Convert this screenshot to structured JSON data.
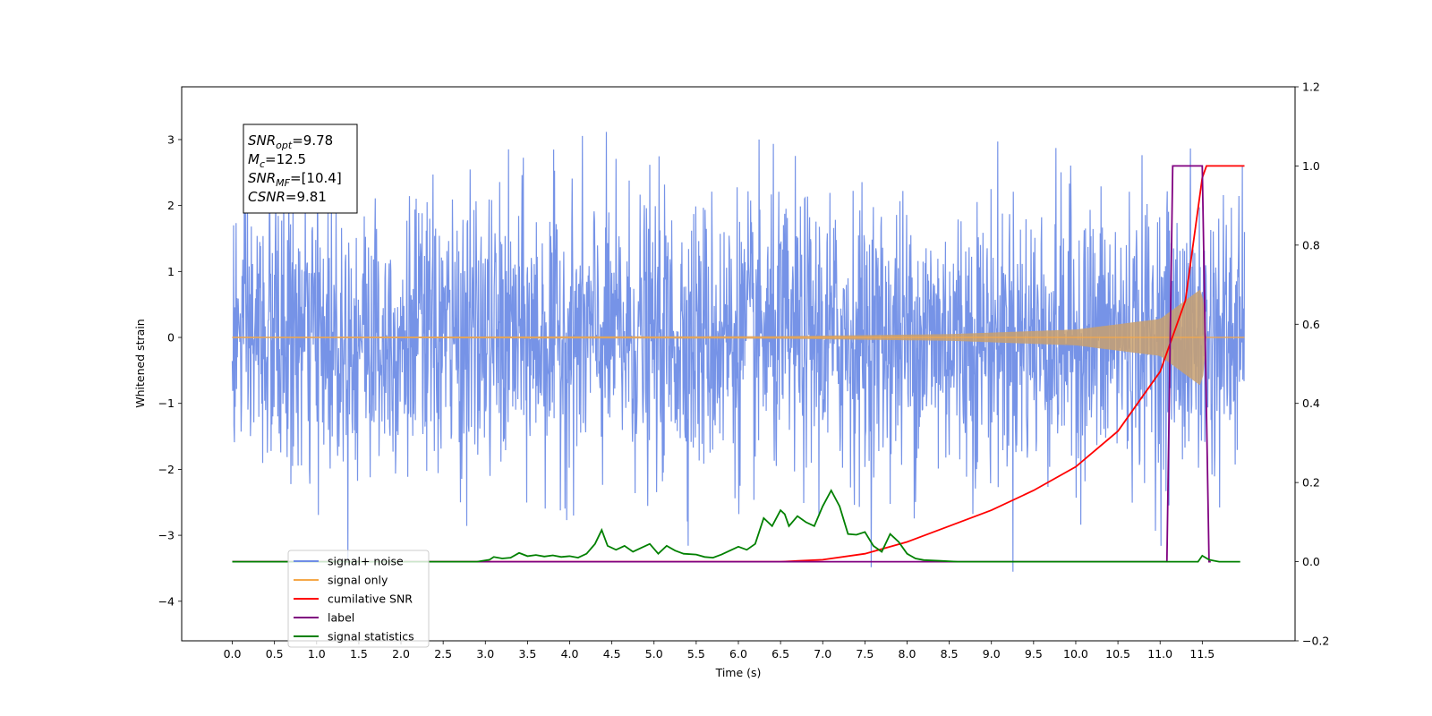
{
  "chart_data": {
    "type": "line",
    "xlabel": "Time (s)",
    "ylabel": "Whitened strain",
    "xlim": [
      -0.6,
      12.6
    ],
    "ylim": [
      -4.6,
      3.8
    ],
    "y2lim": [
      -0.2,
      1.2
    ],
    "x_ticks": [
      "0.0",
      "0.5",
      "1.0",
      "1.5",
      "2.0",
      "2.5",
      "3.0",
      "3.5",
      "4.0",
      "4.5",
      "5.0",
      "5.5",
      "6.0",
      "6.5",
      "7.0",
      "7.5",
      "8.0",
      "8.5",
      "9.0",
      "9.5",
      "10.0",
      "10.5",
      "11.0",
      "11.5"
    ],
    "y_ticks": [
      "3",
      "2",
      "1",
      "0",
      "−1",
      "−2",
      "−3",
      "−4"
    ],
    "y2_ticks": [
      "1.2",
      "1.0",
      "0.8",
      "0.6",
      "0.4",
      "0.2",
      "0.0",
      "−0.2"
    ],
    "grid": false,
    "legend_position": "lower-left",
    "annotation": [
      {
        "base": "SNR",
        "sub": "opt",
        "rest": "=9.78"
      },
      {
        "base": "M",
        "sub": "c",
        "rest": "=12.5"
      },
      {
        "base": "SNR",
        "sub": "MF",
        "rest": "=[10.4]"
      },
      {
        "base": "CSNR",
        "sub": "",
        "rest": "=9.81"
      }
    ],
    "series": [
      {
        "name": "signal+ noise",
        "color": "#6f8de6",
        "axis": "left",
        "description_range": [
          -2.7,
          2.6
        ],
        "x_range": [
          0.0,
          12.0
        ]
      },
      {
        "name": "signal only",
        "color": "#f5a84a",
        "axis": "left",
        "envelope": {
          "x": [
            0.0,
            6.5,
            8.5,
            10.0,
            11.0,
            11.5,
            11.55
          ],
          "amp": [
            0.01,
            0.02,
            0.05,
            0.12,
            0.28,
            0.75,
            0.0
          ]
        }
      },
      {
        "name": "cumilative SNR",
        "color": "#ff0000",
        "axis": "right",
        "x": [
          0.0,
          6.5,
          7.0,
          7.5,
          8.0,
          8.5,
          9.0,
          9.5,
          10.0,
          10.5,
          11.0,
          11.3,
          11.5,
          11.55,
          12.0
        ],
        "values": [
          0.0,
          0.0,
          0.005,
          0.02,
          0.05,
          0.09,
          0.13,
          0.18,
          0.24,
          0.33,
          0.48,
          0.66,
          0.97,
          1.0,
          1.0
        ]
      },
      {
        "name": "label",
        "color": "#800080",
        "axis": "right",
        "x": [
          0.0,
          11.08,
          11.15,
          11.5,
          11.58,
          11.6
        ],
        "values": [
          0.0,
          0.0,
          1.0,
          1.0,
          0.0,
          0.0
        ]
      },
      {
        "name": "signal statistics",
        "color": "#008000",
        "axis": "right",
        "x": [
          0.0,
          2.9,
          3.05,
          3.1,
          3.2,
          3.3,
          3.4,
          3.5,
          3.6,
          3.7,
          3.8,
          3.9,
          4.0,
          4.1,
          4.2,
          4.3,
          4.38,
          4.45,
          4.55,
          4.65,
          4.75,
          4.85,
          4.95,
          5.05,
          5.15,
          5.25,
          5.35,
          5.5,
          5.6,
          5.7,
          5.8,
          5.9,
          6.0,
          6.1,
          6.2,
          6.3,
          6.4,
          6.5,
          6.55,
          6.6,
          6.7,
          6.8,
          6.9,
          7.0,
          7.1,
          7.2,
          7.3,
          7.4,
          7.5,
          7.6,
          7.7,
          7.8,
          7.9,
          8.0,
          8.1,
          8.2,
          8.4,
          8.6,
          9.0,
          11.45,
          11.5,
          11.58,
          11.65,
          11.7,
          11.95
        ],
        "values": [
          0.0,
          0.0,
          0.005,
          0.012,
          0.008,
          0.01,
          0.022,
          0.014,
          0.017,
          0.013,
          0.016,
          0.012,
          0.014,
          0.01,
          0.02,
          0.045,
          0.08,
          0.04,
          0.03,
          0.04,
          0.025,
          0.035,
          0.045,
          0.02,
          0.04,
          0.028,
          0.02,
          0.018,
          0.012,
          0.01,
          0.018,
          0.028,
          0.038,
          0.03,
          0.045,
          0.11,
          0.09,
          0.13,
          0.12,
          0.09,
          0.115,
          0.1,
          0.09,
          0.14,
          0.18,
          0.14,
          0.07,
          0.068,
          0.075,
          0.04,
          0.025,
          0.07,
          0.05,
          0.02,
          0.008,
          0.004,
          0.002,
          0.0,
          0.0,
          0.0,
          0.015,
          0.005,
          0.002,
          0.0,
          0.0
        ]
      }
    ]
  }
}
